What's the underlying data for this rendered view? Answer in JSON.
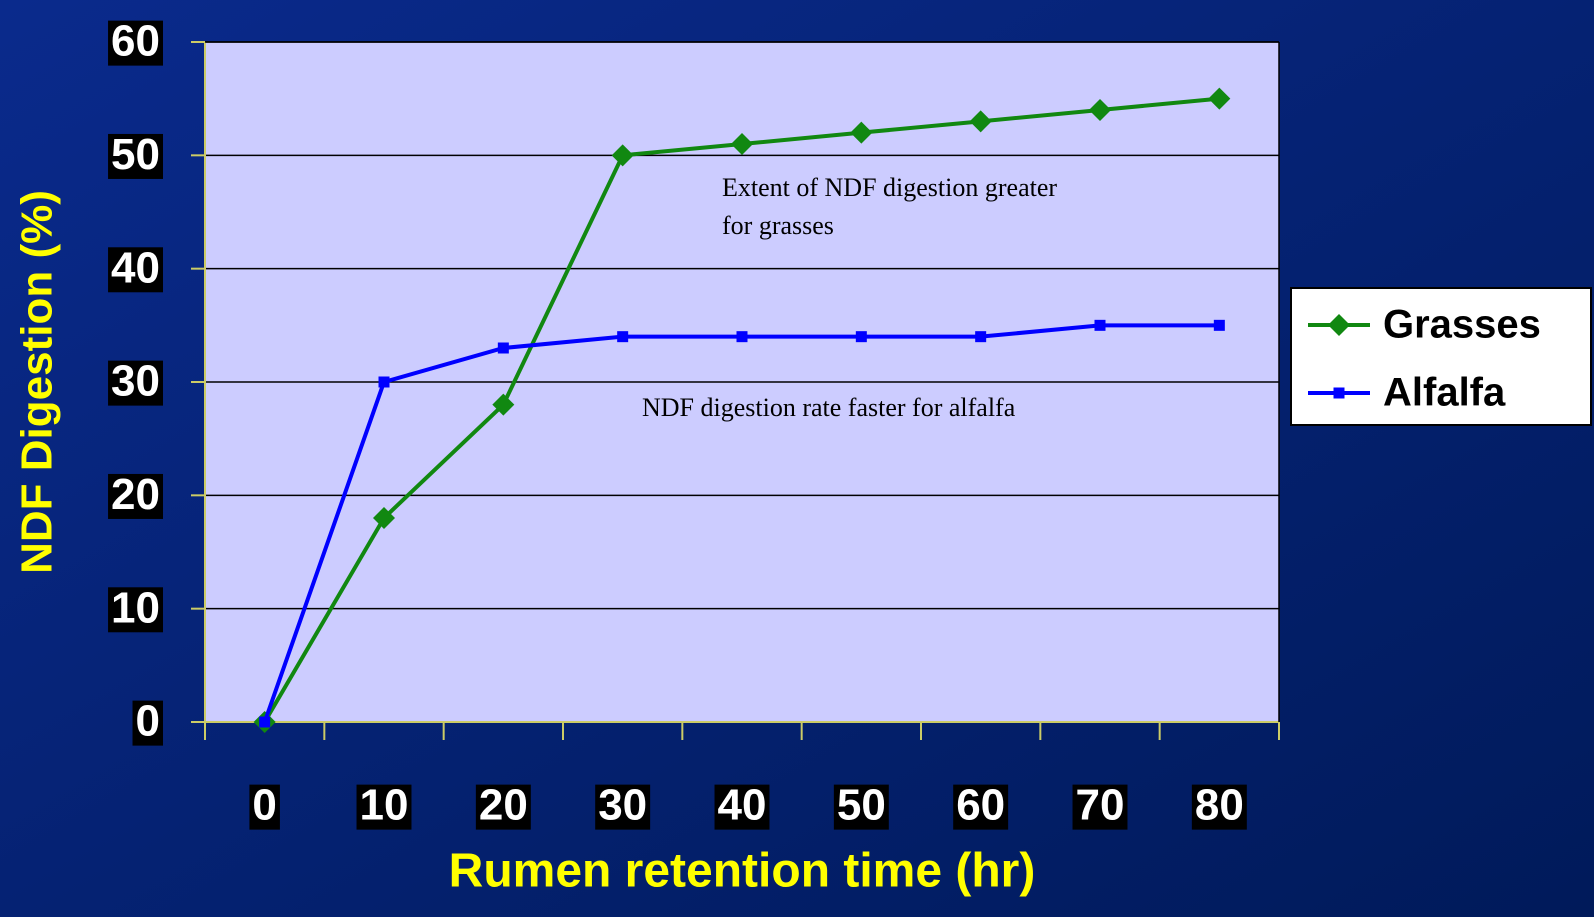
{
  "chart_data": {
    "type": "line",
    "x_label": "Rumen retention time (hr)",
    "y_label": "NDF Digestion (%)",
    "categories": [
      "0",
      "10",
      "20",
      "30",
      "40",
      "50",
      "60",
      "70",
      "80"
    ],
    "series": [
      {
        "name": "Grasses",
        "color": "#118811",
        "marker": "diamond",
        "values": [
          0,
          18,
          28,
          50,
          51,
          52,
          53,
          54,
          55
        ]
      },
      {
        "name": "Alfalfa",
        "color": "#0000ff",
        "marker": "square",
        "values": [
          0,
          30,
          33,
          34,
          34,
          34,
          34,
          35,
          35
        ]
      }
    ],
    "ylim": [
      0,
      60
    ],
    "yticks": [
      0,
      10,
      20,
      30,
      40,
      50,
      60
    ],
    "grid": true,
    "legend": "right",
    "annotations": [
      {
        "lines": [
          "Extent of NDF digestion greater",
          "for grasses"
        ]
      },
      {
        "lines": [
          "NDF digestion rate faster for alfalfa"
        ]
      }
    ]
  }
}
